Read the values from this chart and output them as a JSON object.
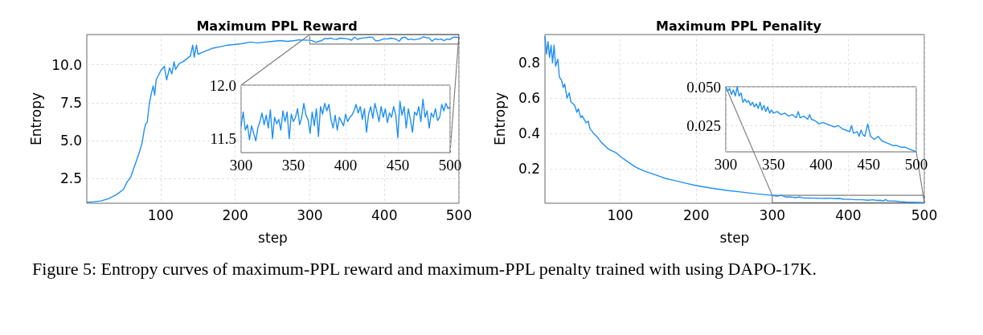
{
  "chart_data": [
    {
      "type": "line",
      "title": "Maximum PPL Reward",
      "xlabel": "step",
      "ylabel": "Entropy",
      "xlim": [
        1,
        500
      ],
      "ylim": [
        0.85,
        12.0
      ],
      "xticks": [
        100,
        200,
        300,
        400,
        500
      ],
      "yticks": [
        2.5,
        {
          "value": 5,
          "label": "5.0"
        },
        7.5,
        {
          "value": 10,
          "label": "10.0"
        }
      ],
      "grid": true,
      "annotations": [
        "Figure 5: Entropy curves of maximum-PPL reward and maximum-PPL penalty trained with using DAPO-17K."
      ],
      "series": [
        {
          "color": "#1f8ff5",
          "x": [
            1,
            10,
            20,
            30,
            40,
            50,
            55,
            60,
            65,
            70,
            75,
            78,
            80,
            82,
            85,
            88,
            90,
            92,
            94,
            98,
            100,
            105,
            108,
            112,
            115,
            118,
            120,
            125,
            130,
            135,
            140,
            143,
            145,
            148,
            150,
            155,
            160,
            170,
            180,
            190,
            200,
            210,
            220,
            230,
            240,
            250,
            260,
            270,
            280,
            285,
            300,
            304,
            308,
            312,
            316,
            320,
            324,
            328,
            332,
            336,
            340,
            344,
            348,
            352,
            356,
            360,
            364,
            368,
            372,
            376,
            380,
            384,
            388,
            392,
            396,
            400,
            404,
            408,
            412,
            416,
            420,
            424,
            428,
            432,
            436,
            440,
            444,
            448,
            452,
            456,
            460,
            464,
            468,
            472,
            476,
            480,
            484,
            488,
            492,
            496,
            500
          ],
          "values": [
            0.92,
            0.95,
            1.0,
            1.15,
            1.4,
            1.75,
            2.25,
            2.6,
            3.3,
            4.0,
            4.8,
            5.7,
            6.1,
            6.2,
            7.5,
            8.2,
            8.6,
            8.0,
            9.0,
            9.4,
            9.6,
            9.9,
            9.0,
            9.8,
            9.4,
            10.2,
            9.7,
            10.1,
            10.2,
            10.4,
            10.6,
            11.3,
            10.5,
            11.3,
            10.7,
            10.8,
            10.9,
            11.1,
            11.2,
            11.3,
            11.35,
            11.4,
            11.5,
            11.45,
            11.5,
            11.55,
            11.6,
            11.55,
            11.6,
            11.65,
            11.62,
            11.58,
            11.49,
            11.55,
            11.6,
            11.74,
            11.72,
            11.77,
            11.7,
            11.68,
            11.76,
            11.75,
            11.73,
            11.7,
            11.63,
            11.83,
            11.68,
            11.75,
            11.78,
            11.8,
            11.83,
            11.82,
            11.6,
            11.58,
            11.66,
            11.73,
            11.7,
            11.76,
            11.74,
            11.68,
            11.56,
            11.8,
            11.83,
            11.66,
            11.7,
            11.65,
            11.7,
            11.72,
            11.85,
            11.8,
            11.78,
            11.56,
            11.72,
            11.66,
            11.7,
            11.6,
            11.7,
            11.67,
            11.82,
            11.83,
            11.8
          ]
        }
      ]
    },
    {
      "type": "line",
      "xlim": [
        300,
        500
      ],
      "ylim": [
        11.37,
        12.0
      ],
      "xticks": [
        300,
        350,
        400,
        450,
        500
      ],
      "yticks": [
        11.5,
        {
          "value": 12,
          "label": "12.0"
        }
      ],
      "grid": true,
      "series": [
        {
          "color": "#1f8ff5",
          "x": [
            300,
            302,
            304,
            306,
            308,
            310,
            312,
            314,
            316,
            318,
            320,
            322,
            324,
            326,
            328,
            330,
            332,
            334,
            336,
            338,
            340,
            342,
            344,
            346,
            348,
            350,
            352,
            354,
            356,
            358,
            360,
            362,
            364,
            366,
            368,
            370,
            372,
            374,
            376,
            378,
            380,
            382,
            384,
            386,
            388,
            390,
            392,
            394,
            396,
            398,
            400,
            402,
            404,
            406,
            408,
            410,
            412,
            414,
            416,
            418,
            420,
            422,
            424,
            426,
            428,
            430,
            432,
            434,
            436,
            438,
            440,
            442,
            444,
            446,
            448,
            450,
            452,
            454,
            456,
            458,
            460,
            462,
            464,
            466,
            468,
            470,
            472,
            474,
            476,
            478,
            480,
            482,
            484,
            486,
            488,
            490,
            492,
            494,
            496,
            498,
            500
          ],
          "values": [
            11.62,
            11.75,
            11.58,
            11.63,
            11.49,
            11.62,
            11.55,
            11.48,
            11.6,
            11.66,
            11.74,
            11.63,
            11.72,
            11.6,
            11.77,
            11.5,
            11.7,
            11.64,
            11.68,
            11.58,
            11.76,
            11.66,
            11.75,
            11.5,
            11.73,
            11.66,
            11.7,
            11.78,
            11.63,
            11.7,
            11.83,
            11.72,
            11.68,
            11.55,
            11.75,
            11.62,
            11.78,
            11.52,
            11.8,
            11.73,
            11.83,
            11.76,
            11.82,
            11.68,
            11.6,
            11.72,
            11.58,
            11.7,
            11.66,
            11.62,
            11.73,
            11.66,
            11.7,
            11.72,
            11.76,
            11.82,
            11.74,
            11.8,
            11.68,
            11.78,
            11.56,
            11.73,
            11.8,
            11.69,
            11.83,
            11.75,
            11.66,
            11.8,
            11.7,
            11.78,
            11.65,
            11.74,
            11.7,
            11.8,
            11.72,
            11.51,
            11.85,
            11.72,
            11.8,
            11.6,
            11.78,
            11.68,
            11.56,
            11.75,
            11.72,
            11.8,
            11.66,
            11.87,
            11.7,
            11.76,
            11.6,
            11.74,
            11.7,
            11.78,
            11.67,
            11.7,
            11.82,
            11.76,
            11.83,
            11.78,
            11.8
          ]
        }
      ]
    },
    {
      "type": "line",
      "title": "Maximum PPL Penality",
      "xlabel": "step",
      "ylabel": "Entropy",
      "xlim": [
        1,
        500
      ],
      "ylim": [
        0.005,
        0.96
      ],
      "xticks": [
        100,
        200,
        300,
        400,
        500
      ],
      "yticks": [
        0.2,
        0.4,
        0.6,
        0.8
      ],
      "grid": true,
      "series": [
        {
          "color": "#1f8ff5",
          "x": [
            1,
            3,
            5,
            7,
            9,
            11,
            13,
            15,
            18,
            20,
            23,
            25,
            27,
            30,
            33,
            35,
            40,
            43,
            45,
            48,
            50,
            55,
            58,
            60,
            65,
            70,
            75,
            80,
            85,
            90,
            95,
            100,
            110,
            120,
            130,
            140,
            150,
            160,
            170,
            180,
            190,
            200,
            220,
            240,
            260,
            280,
            300,
            306,
            312,
            318,
            324,
            330,
            336,
            342,
            348,
            354,
            362,
            370,
            376,
            382,
            388,
            394,
            402,
            410,
            418,
            426,
            432,
            438,
            442,
            446,
            449,
            452,
            460,
            468,
            476,
            484,
            492,
            500
          ],
          "values": [
            0.95,
            0.85,
            0.92,
            0.83,
            0.9,
            0.8,
            0.9,
            0.78,
            0.82,
            0.72,
            0.7,
            0.66,
            0.68,
            0.6,
            0.63,
            0.58,
            0.56,
            0.52,
            0.54,
            0.49,
            0.5,
            0.46,
            0.47,
            0.43,
            0.4,
            0.38,
            0.35,
            0.33,
            0.31,
            0.3,
            0.29,
            0.27,
            0.24,
            0.21,
            0.19,
            0.175,
            0.16,
            0.145,
            0.135,
            0.125,
            0.115,
            0.105,
            0.09,
            0.078,
            0.068,
            0.058,
            0.05,
            0.045,
            0.05,
            0.04,
            0.041,
            0.037,
            0.04,
            0.034,
            0.035,
            0.034,
            0.033,
            0.032,
            0.034,
            0.031,
            0.032,
            0.028,
            0.027,
            0.025,
            0.025,
            0.022,
            0.025,
            0.021,
            0.022,
            0.018,
            0.026,
            0.018,
            0.018,
            0.014,
            0.012,
            0.011,
            0.01,
            0.008
          ]
        }
      ]
    },
    {
      "type": "line",
      "xlim": [
        300,
        500
      ],
      "ylim": [
        0.008,
        0.05
      ],
      "xticks": [
        300,
        350,
        400,
        450,
        500
      ],
      "yticks": [
        0.025,
        {
          "value": 0.05,
          "label": "0.050"
        }
      ],
      "grid": true,
      "series": [
        {
          "color": "#1f8ff5",
          "x": [
            300,
            302,
            304,
            306,
            308,
            310,
            312,
            314,
            316,
            318,
            320,
            322,
            324,
            326,
            328,
            330,
            332,
            334,
            336,
            338,
            340,
            342,
            344,
            346,
            348,
            350,
            354,
            358,
            362,
            366,
            370,
            374,
            376,
            378,
            382,
            386,
            388,
            390,
            394,
            398,
            402,
            406,
            410,
            414,
            418,
            422,
            426,
            430,
            432,
            434,
            438,
            440,
            442,
            444,
            446,
            449,
            452,
            456,
            460,
            464,
            468,
            472,
            476,
            480,
            484,
            488,
            492,
            496,
            500
          ],
          "values": [
            0.05,
            0.047,
            0.049,
            0.045,
            0.048,
            0.044,
            0.05,
            0.044,
            0.046,
            0.04,
            0.042,
            0.04,
            0.041,
            0.038,
            0.04,
            0.037,
            0.039,
            0.036,
            0.04,
            0.035,
            0.038,
            0.034,
            0.037,
            0.033,
            0.035,
            0.033,
            0.034,
            0.032,
            0.033,
            0.031,
            0.032,
            0.03,
            0.034,
            0.03,
            0.031,
            0.029,
            0.032,
            0.029,
            0.028,
            0.026,
            0.027,
            0.026,
            0.025,
            0.024,
            0.025,
            0.023,
            0.022,
            0.021,
            0.025,
            0.02,
            0.021,
            0.018,
            0.022,
            0.019,
            0.018,
            0.026,
            0.018,
            0.016,
            0.018,
            0.015,
            0.014,
            0.013,
            0.012,
            0.012,
            0.011,
            0.011,
            0.01,
            0.009,
            0.008
          ]
        }
      ]
    }
  ]
}
